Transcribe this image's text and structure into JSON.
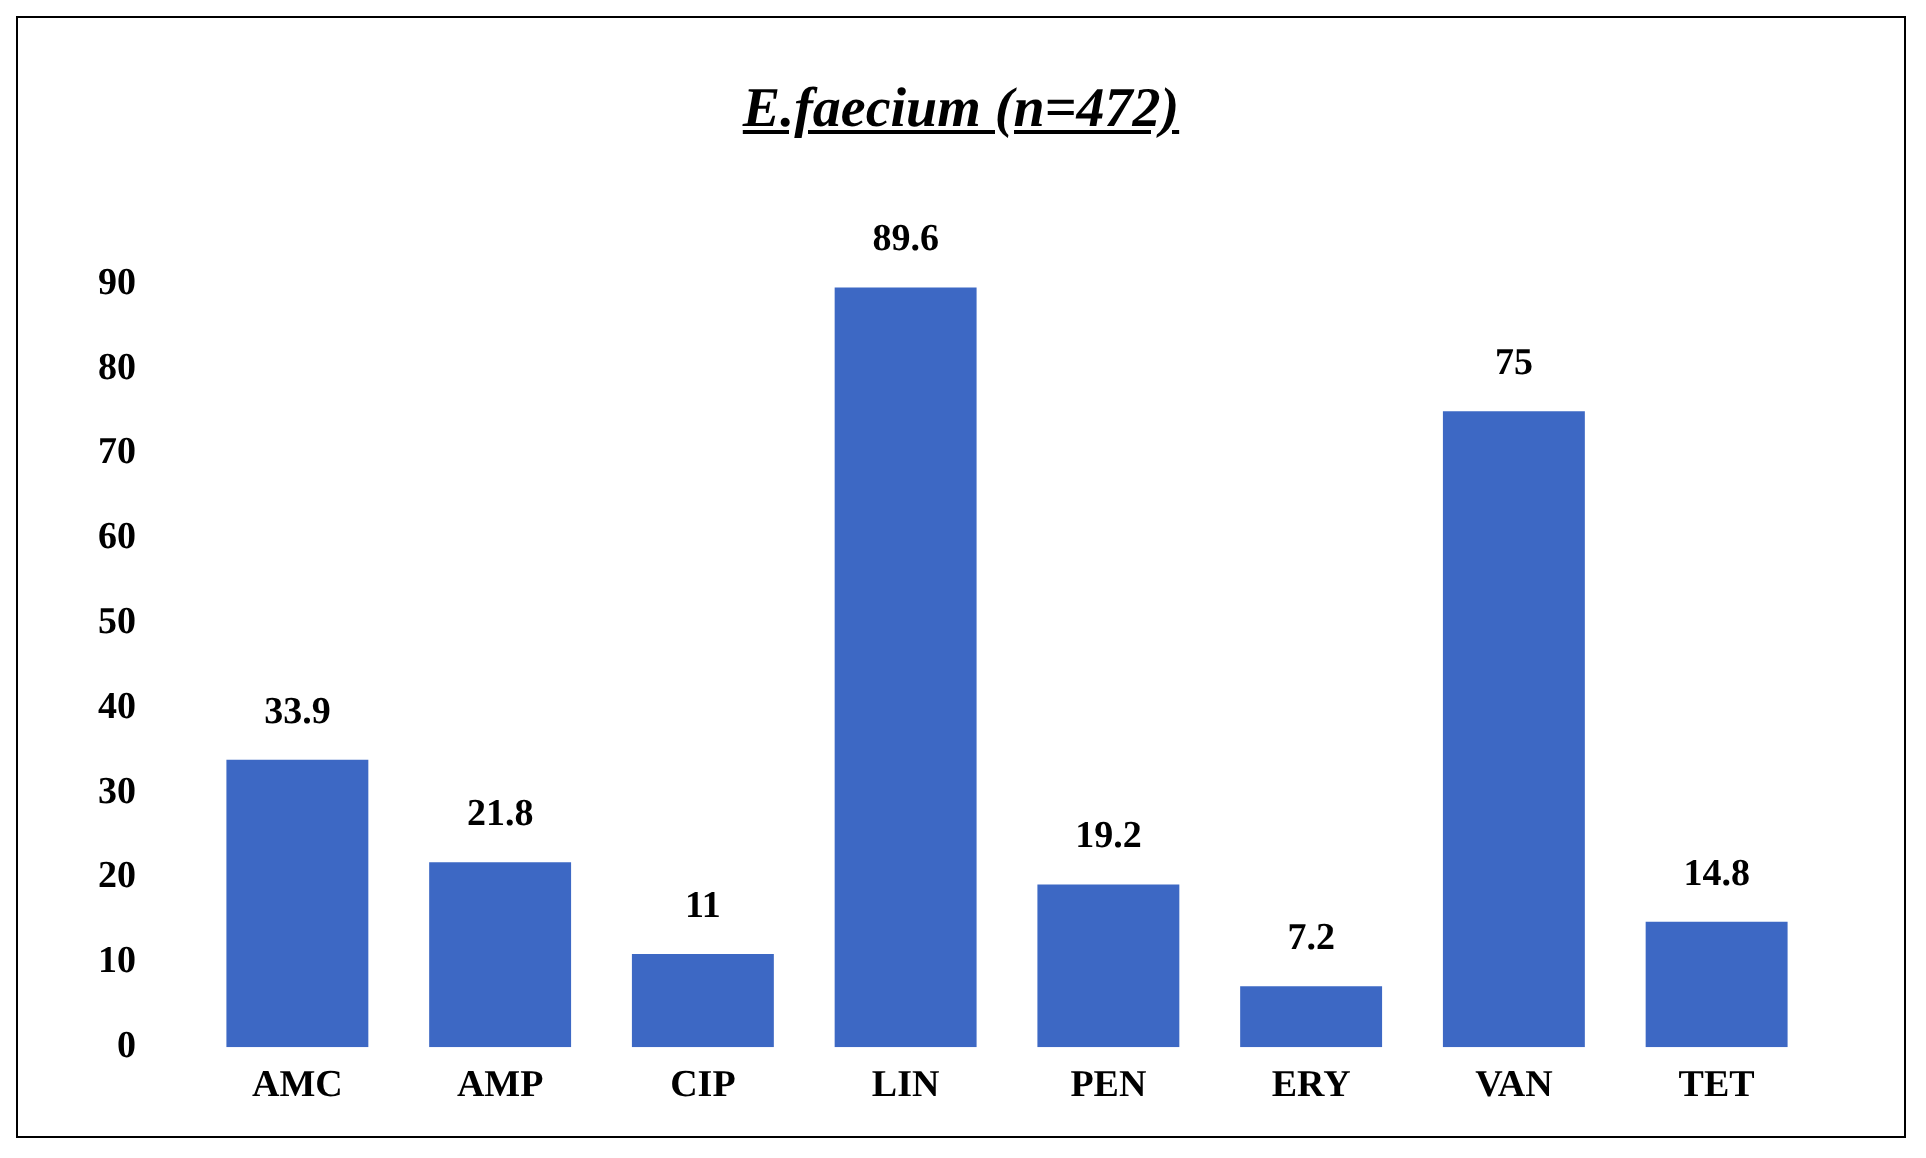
{
  "chart_data": {
    "type": "bar",
    "title": "E.faecium (n=472)",
    "categories": [
      "AMC",
      "AMP",
      "CIP",
      "LIN",
      "PEN",
      "ERY",
      "VAN",
      "TET"
    ],
    "values": [
      33.9,
      21.8,
      11,
      89.6,
      19.2,
      7.2,
      75,
      14.8
    ],
    "color": "#3d68c4",
    "ylim": [
      0,
      90
    ],
    "yticks": [
      0,
      10,
      20,
      30,
      40,
      50,
      60,
      70,
      80,
      90
    ],
    "data_labels": true
  }
}
